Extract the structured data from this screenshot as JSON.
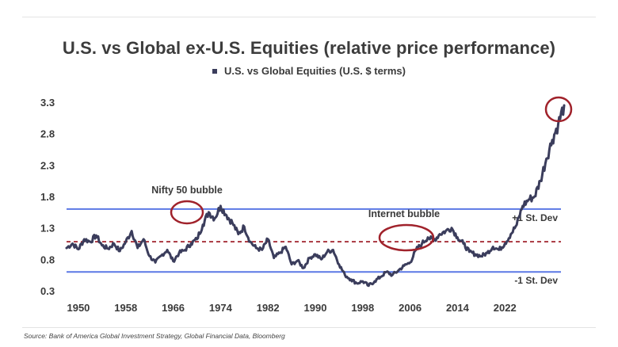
{
  "chart_data": {
    "type": "line",
    "title": "U.S. vs Global ex-U.S. Equities (relative price performance)",
    "legend": [
      "U.S. vs Global Equities (U.S. $ terms)"
    ],
    "legend_position": "top-center",
    "series": [
      {
        "name": "U.S. vs Global Equities (U.S. $ terms)",
        "color": "#3b3d5c",
        "points": [
          [
            1948,
            0.98
          ],
          [
            1949,
            1.05
          ],
          [
            1950,
            0.96
          ],
          [
            1951,
            1.12
          ],
          [
            1952,
            1.08
          ],
          [
            1953,
            1.18
          ],
          [
            1954,
            1.02
          ],
          [
            1955,
            0.97
          ],
          [
            1956,
            1.05
          ],
          [
            1957,
            0.93
          ],
          [
            1958,
            1.08
          ],
          [
            1959,
            1.25
          ],
          [
            1960,
            0.98
          ],
          [
            1961,
            1.12
          ],
          [
            1962,
            0.85
          ],
          [
            1963,
            0.75
          ],
          [
            1964,
            0.86
          ],
          [
            1965,
            0.95
          ],
          [
            1966,
            0.77
          ],
          [
            1967,
            0.9
          ],
          [
            1968,
            0.95
          ],
          [
            1969,
            1.05
          ],
          [
            1970,
            1.12
          ],
          [
            1971,
            1.35
          ],
          [
            1972,
            1.55
          ],
          [
            1973,
            1.45
          ],
          [
            1974,
            1.65
          ],
          [
            1975,
            1.5
          ],
          [
            1976,
            1.38
          ],
          [
            1977,
            1.2
          ],
          [
            1978,
            1.32
          ],
          [
            1979,
            1.08
          ],
          [
            1980,
            0.98
          ],
          [
            1981,
            0.95
          ],
          [
            1982,
            1.12
          ],
          [
            1983,
            0.82
          ],
          [
            1984,
            0.9
          ],
          [
            1985,
            1.0
          ],
          [
            1986,
            0.72
          ],
          [
            1987,
            0.78
          ],
          [
            1988,
            0.66
          ],
          [
            1989,
            0.82
          ],
          [
            1990,
            0.88
          ],
          [
            1991,
            0.8
          ],
          [
            1992,
            0.92
          ],
          [
            1993,
            0.95
          ],
          [
            1994,
            0.72
          ],
          [
            1995,
            0.55
          ],
          [
            1996,
            0.48
          ],
          [
            1997,
            0.42
          ],
          [
            1998,
            0.45
          ],
          [
            1999,
            0.38
          ],
          [
            2000,
            0.45
          ],
          [
            2001,
            0.52
          ],
          [
            2002,
            0.6
          ],
          [
            2003,
            0.55
          ],
          [
            2004,
            0.62
          ],
          [
            2005,
            0.7
          ],
          [
            2006,
            0.75
          ],
          [
            2007,
            0.95
          ],
          [
            2008,
            1.05
          ],
          [
            2009,
            1.15
          ],
          [
            2010,
            1.1
          ],
          [
            2011,
            1.2
          ],
          [
            2012,
            1.25
          ],
          [
            2013,
            1.3
          ],
          [
            2014,
            1.15
          ],
          [
            2015,
            1.05
          ],
          [
            2016,
            0.92
          ],
          [
            2017,
            0.88
          ],
          [
            2018,
            0.85
          ],
          [
            2019,
            0.9
          ],
          [
            2020,
            1.0
          ],
          [
            2021,
            0.95
          ],
          [
            2022,
            1.05
          ],
          [
            2023,
            1.2
          ],
          [
            2024,
            1.35
          ],
          [
            2025,
            1.65
          ],
          [
            2026,
            1.75
          ],
          [
            2027,
            1.8
          ],
          [
            2028,
            2.05
          ],
          [
            2029,
            2.4
          ],
          [
            2030,
            2.7
          ],
          [
            2031,
            2.95
          ],
          [
            2032,
            3.25
          ]
        ]
      }
    ],
    "reference_lines": [
      {
        "label": "+1 St. Dev",
        "value": 1.6,
        "style": "solid",
        "color": "#5b78e5"
      },
      {
        "label": "",
        "value": 1.08,
        "style": "dashed",
        "color": "#a0222b"
      },
      {
        "label": "-1 St. Dev",
        "value": 0.6,
        "style": "solid",
        "color": "#5b78e5"
      }
    ],
    "annotations": [
      {
        "text": "Nifty 50 bubble",
        "x": 1968,
        "y": 1.55
      },
      {
        "text": "Internet bubble",
        "x": 2000,
        "y": 1.15
      },
      {
        "text": "",
        "x": 2031,
        "y": 3.15
      }
    ],
    "xticks": [
      "1950",
      "1958",
      "1966",
      "1974",
      "1982",
      "1990",
      "1998",
      "2006",
      "2014",
      "2022"
    ],
    "yticks": [
      "3.3",
      "2.8",
      "2.3",
      "1.8",
      "1.3",
      "0.8",
      "0.3"
    ],
    "ylim": [
      0.3,
      3.3
    ],
    "xlim": [
      1948,
      2032
    ],
    "grid": false
  },
  "source": "Source: Bank of America Global Investment Strategy, Global Financial Data, Bloomberg"
}
